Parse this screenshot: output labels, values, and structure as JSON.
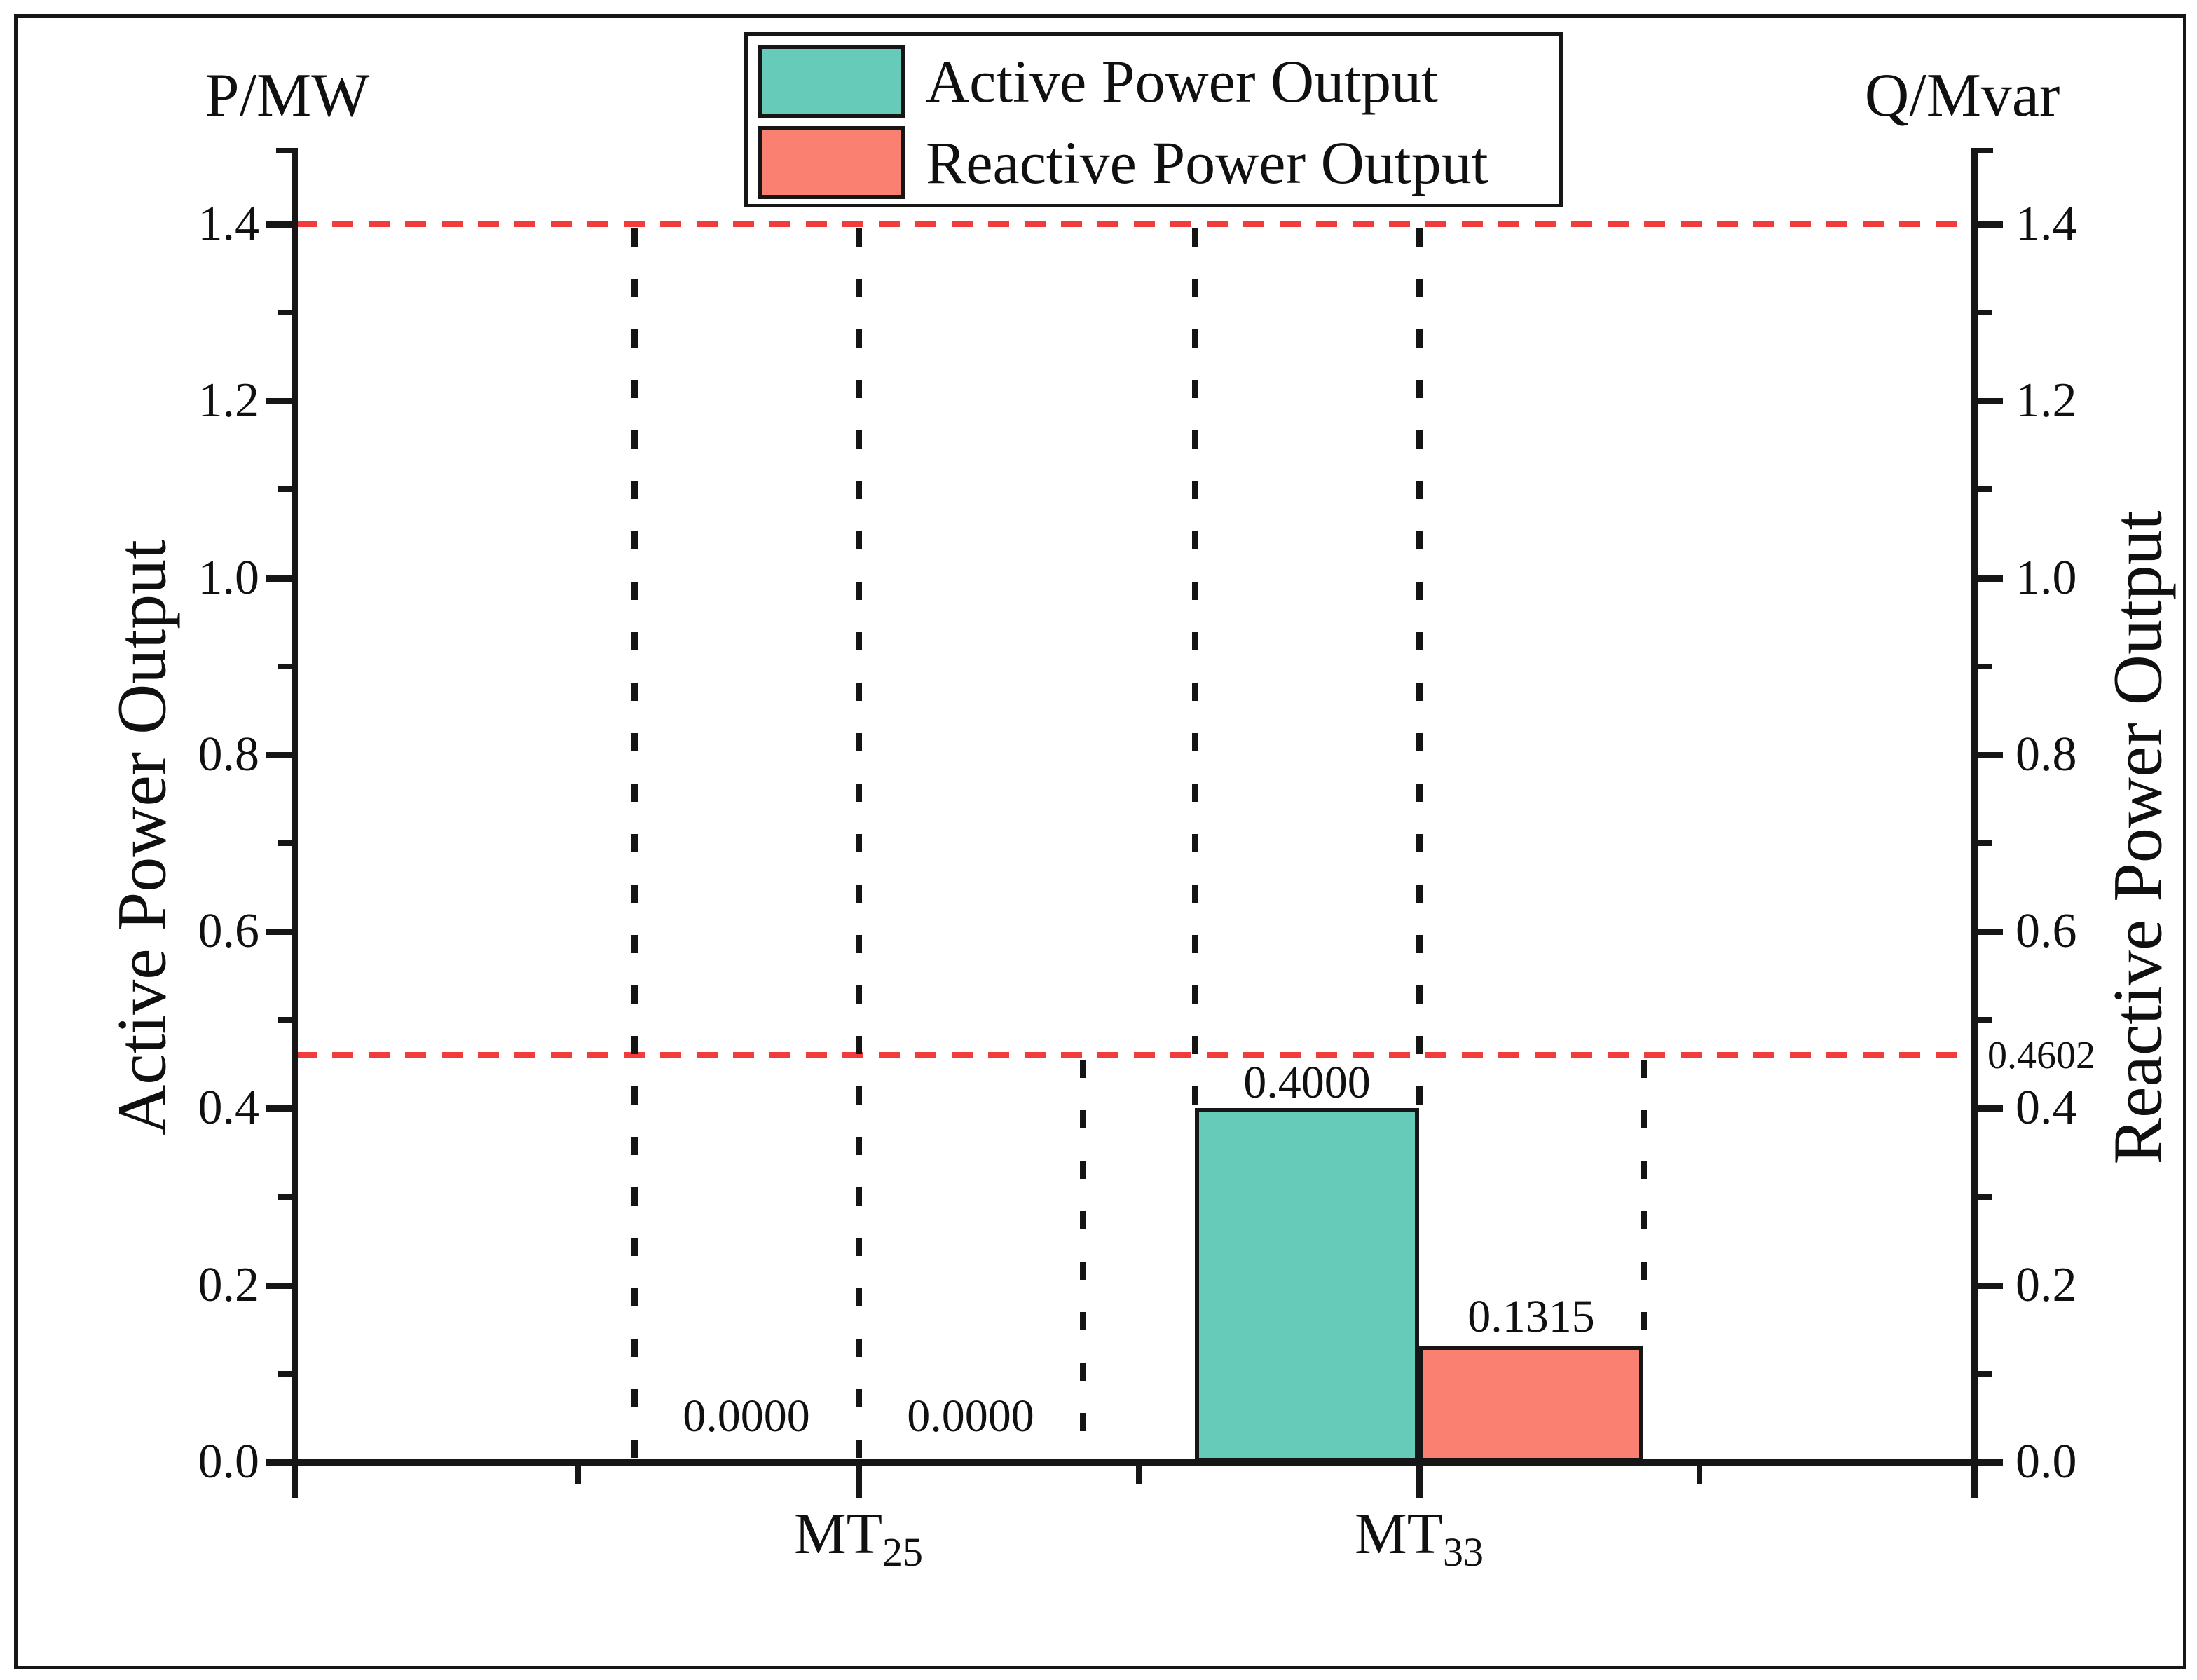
{
  "legend": {
    "items": [
      {
        "label": "Active Power Output",
        "color": "#66CBB8"
      },
      {
        "label": "Reactive Power Output",
        "color": "#FA8072"
      }
    ]
  },
  "axes": {
    "left": {
      "corner_label": "P/MW",
      "title": "Active Power Output",
      "tick_labels": [
        "1.4",
        "1.2",
        "1.0",
        "0.8",
        "0.6",
        "0.4",
        "0.2",
        "0.0"
      ]
    },
    "right": {
      "corner_label": "Q/Mvar",
      "title": "Reactive Power Output",
      "tick_labels": [
        "1.4",
        "1.2",
        "1.0",
        "0.8",
        "0.6",
        "0.4",
        "0.2",
        "0.0"
      ],
      "annotation": "0.4602"
    },
    "x": {
      "categories": [
        {
          "base": "MT",
          "sub": "25"
        },
        {
          "base": "MT",
          "sub": "33"
        }
      ]
    }
  },
  "bar_labels": {
    "mt25_active": "0.0000",
    "mt25_reactive": "0.0000",
    "mt33_active": "0.4000",
    "mt33_reactive": "0.1315"
  },
  "chart_data": {
    "type": "bar",
    "categories": [
      "MT25",
      "MT33"
    ],
    "series": [
      {
        "name": "Active Power Output",
        "axis": "left P/MW",
        "color": "#66CBB8",
        "values": [
          0.0,
          0.4
        ]
      },
      {
        "name": "Reactive Power Output",
        "axis": "right Q/Mvar",
        "color": "#FA8072",
        "values": [
          0.0,
          0.1315
        ]
      }
    ],
    "value_labels": [
      [
        "0.0000",
        "0.4000"
      ],
      [
        "0.0000",
        "0.1315"
      ]
    ],
    "ylim": [
      0.0,
      1.4
    ],
    "ytick_step": 0.2,
    "grid": false,
    "legend_position": "top center",
    "reference_lines": [
      {
        "value": 1.4,
        "color": "#f23c3c",
        "style": "dashed",
        "meaning": "active power upper limit"
      },
      {
        "value": 0.4602,
        "color": "#f23c3c",
        "style": "dashed",
        "meaning": "reactive power upper limit"
      }
    ],
    "guide_lines": "black dotted verticals at bar edges dropping from the limit lines to the bar tops / axis"
  }
}
